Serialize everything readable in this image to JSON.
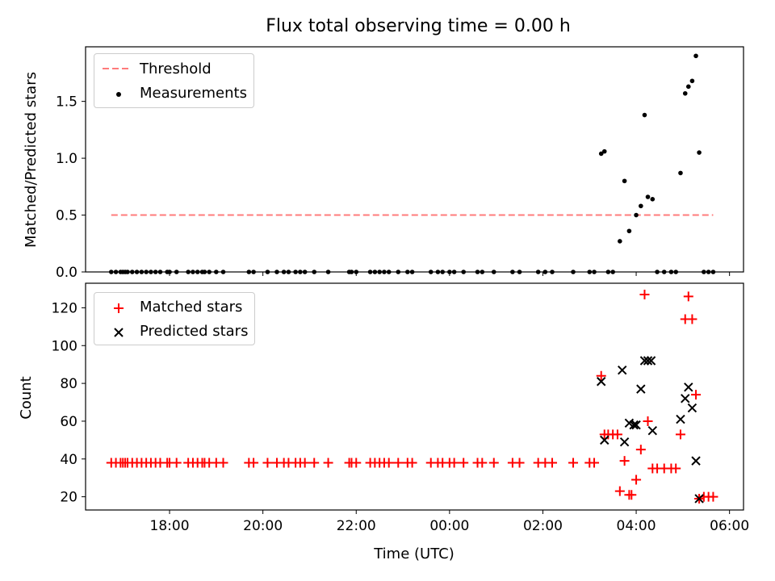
{
  "chart_data": {
    "type": "scatter",
    "title": "Flux total observing time = 0.00 h",
    "xlabel": "Time (UTC)",
    "x_tick_labels": [
      "18:00",
      "20:00",
      "22:00",
      "00:00",
      "02:00",
      "04:00",
      "06:00"
    ],
    "x_tick_hours": [
      18,
      20,
      22,
      24,
      26,
      28,
      30
    ],
    "xlim_hours": [
      16.2,
      30.3
    ],
    "top_panel": {
      "ylabel": "Matched/Predicted stars",
      "ylim": [
        0,
        1.98
      ],
      "y_ticks": [
        0.0,
        0.5,
        1.0,
        1.5
      ],
      "y_tick_labels": [
        "0.0",
        "0.5",
        "1.0",
        "1.5"
      ],
      "threshold": {
        "name": "Threshold",
        "value": 0.5,
        "x_start": 16.75,
        "x_end": 29.65,
        "color": "#ff7b7b"
      },
      "measurements": {
        "name": "Measurements",
        "color": "#000000",
        "points": [
          [
            16.75,
            0
          ],
          [
            16.85,
            0
          ],
          [
            16.95,
            0
          ],
          [
            17.0,
            0
          ],
          [
            17.05,
            0
          ],
          [
            17.1,
            0
          ],
          [
            17.2,
            0
          ],
          [
            17.3,
            0
          ],
          [
            17.4,
            0
          ],
          [
            17.5,
            0
          ],
          [
            17.6,
            0
          ],
          [
            17.7,
            0
          ],
          [
            17.8,
            0
          ],
          [
            17.95,
            0
          ],
          [
            18.0,
            0
          ],
          [
            18.15,
            0
          ],
          [
            18.4,
            0
          ],
          [
            18.5,
            0
          ],
          [
            18.6,
            0
          ],
          [
            18.7,
            0
          ],
          [
            18.75,
            0
          ],
          [
            18.85,
            0
          ],
          [
            19.0,
            0
          ],
          [
            19.15,
            0
          ],
          [
            19.7,
            0
          ],
          [
            19.8,
            0
          ],
          [
            20.1,
            0
          ],
          [
            20.3,
            0
          ],
          [
            20.45,
            0
          ],
          [
            20.55,
            0
          ],
          [
            20.7,
            0
          ],
          [
            20.8,
            0
          ],
          [
            20.9,
            0
          ],
          [
            21.1,
            0
          ],
          [
            21.4,
            0
          ],
          [
            21.85,
            0
          ],
          [
            21.9,
            0
          ],
          [
            22.0,
            0
          ],
          [
            22.3,
            0
          ],
          [
            22.4,
            0
          ],
          [
            22.5,
            0
          ],
          [
            22.6,
            0
          ],
          [
            22.7,
            0
          ],
          [
            22.9,
            0
          ],
          [
            23.1,
            0
          ],
          [
            23.2,
            0
          ],
          [
            23.6,
            0
          ],
          [
            23.75,
            0
          ],
          [
            23.85,
            0
          ],
          [
            24.0,
            0
          ],
          [
            24.1,
            0
          ],
          [
            24.3,
            0
          ],
          [
            24.6,
            0
          ],
          [
            24.7,
            0
          ],
          [
            24.95,
            0
          ],
          [
            25.35,
            0
          ],
          [
            25.5,
            0
          ],
          [
            25.9,
            0
          ],
          [
            26.05,
            0
          ],
          [
            26.2,
            0
          ],
          [
            26.65,
            0
          ],
          [
            27.0,
            0
          ],
          [
            27.1,
            0
          ],
          [
            27.25,
            1.04
          ],
          [
            27.32,
            1.06
          ],
          [
            27.4,
            0
          ],
          [
            27.5,
            0
          ],
          [
            27.65,
            0.27
          ],
          [
            27.75,
            0.8
          ],
          [
            27.85,
            0.36
          ],
          [
            28.0,
            0.5
          ],
          [
            28.1,
            0.58
          ],
          [
            28.18,
            1.38
          ],
          [
            28.25,
            0.66
          ],
          [
            28.35,
            0.64
          ],
          [
            28.45,
            0
          ],
          [
            28.6,
            0
          ],
          [
            28.75,
            0
          ],
          [
            28.85,
            0
          ],
          [
            28.95,
            0.87
          ],
          [
            29.05,
            1.57
          ],
          [
            29.12,
            1.63
          ],
          [
            29.2,
            1.68
          ],
          [
            29.28,
            1.9
          ],
          [
            29.35,
            1.05
          ],
          [
            29.45,
            0
          ],
          [
            29.55,
            0
          ],
          [
            29.65,
            0
          ]
        ]
      }
    },
    "bottom_panel": {
      "ylabel": "Count",
      "ylim": [
        13,
        133
      ],
      "y_ticks": [
        20,
        40,
        60,
        80,
        100,
        120
      ],
      "y_tick_labels": [
        "20",
        "40",
        "60",
        "80",
        "100",
        "120"
      ],
      "matched": {
        "name": "Matched stars",
        "color": "#ff0000",
        "points": [
          [
            16.75,
            38
          ],
          [
            16.85,
            38
          ],
          [
            16.95,
            38
          ],
          [
            17.0,
            38
          ],
          [
            17.05,
            38
          ],
          [
            17.1,
            38
          ],
          [
            17.2,
            38
          ],
          [
            17.3,
            38
          ],
          [
            17.4,
            38
          ],
          [
            17.5,
            38
          ],
          [
            17.6,
            38
          ],
          [
            17.7,
            38
          ],
          [
            17.8,
            38
          ],
          [
            17.95,
            38
          ],
          [
            18.0,
            38
          ],
          [
            18.15,
            38
          ],
          [
            18.4,
            38
          ],
          [
            18.5,
            38
          ],
          [
            18.6,
            38
          ],
          [
            18.7,
            38
          ],
          [
            18.75,
            38
          ],
          [
            18.85,
            38
          ],
          [
            19.0,
            38
          ],
          [
            19.15,
            38
          ],
          [
            19.7,
            38
          ],
          [
            19.8,
            38
          ],
          [
            20.1,
            38
          ],
          [
            20.3,
            38
          ],
          [
            20.45,
            38
          ],
          [
            20.55,
            38
          ],
          [
            20.7,
            38
          ],
          [
            20.8,
            38
          ],
          [
            20.9,
            38
          ],
          [
            21.1,
            38
          ],
          [
            21.4,
            38
          ],
          [
            21.85,
            38
          ],
          [
            21.9,
            38
          ],
          [
            22.0,
            38
          ],
          [
            22.3,
            38
          ],
          [
            22.4,
            38
          ],
          [
            22.5,
            38
          ],
          [
            22.6,
            38
          ],
          [
            22.7,
            38
          ],
          [
            22.9,
            38
          ],
          [
            23.1,
            38
          ],
          [
            23.2,
            38
          ],
          [
            23.6,
            38
          ],
          [
            23.75,
            38
          ],
          [
            23.85,
            38
          ],
          [
            24.0,
            38
          ],
          [
            24.1,
            38
          ],
          [
            24.3,
            38
          ],
          [
            24.6,
            38
          ],
          [
            24.7,
            38
          ],
          [
            24.95,
            38
          ],
          [
            25.35,
            38
          ],
          [
            25.5,
            38
          ],
          [
            25.9,
            38
          ],
          [
            26.05,
            38
          ],
          [
            26.2,
            38
          ],
          [
            26.65,
            38
          ],
          [
            27.0,
            38
          ],
          [
            27.1,
            38
          ],
          [
            27.25,
            84
          ],
          [
            27.32,
            53
          ],
          [
            27.4,
            53
          ],
          [
            27.5,
            53
          ],
          [
            27.6,
            53
          ],
          [
            27.65,
            23
          ],
          [
            27.75,
            39
          ],
          [
            27.85,
            21
          ],
          [
            27.9,
            21
          ],
          [
            28.0,
            29
          ],
          [
            28.1,
            45
          ],
          [
            28.18,
            127
          ],
          [
            28.25,
            60
          ],
          [
            28.35,
            35
          ],
          [
            28.45,
            35
          ],
          [
            28.6,
            35
          ],
          [
            28.75,
            35
          ],
          [
            28.85,
            35
          ],
          [
            28.95,
            53
          ],
          [
            29.05,
            114
          ],
          [
            29.12,
            126
          ],
          [
            29.2,
            114
          ],
          [
            29.28,
            74
          ],
          [
            29.35,
            19
          ],
          [
            29.45,
            20
          ],
          [
            29.55,
            20
          ],
          [
            29.65,
            20
          ]
        ]
      },
      "predicted": {
        "name": "Predicted stars",
        "color": "#000000",
        "points": [
          [
            27.25,
            81
          ],
          [
            27.32,
            50
          ],
          [
            27.7,
            87
          ],
          [
            27.75,
            49
          ],
          [
            27.85,
            59
          ],
          [
            27.95,
            58
          ],
          [
            28.0,
            58
          ],
          [
            28.1,
            77
          ],
          [
            28.18,
            92
          ],
          [
            28.25,
            92
          ],
          [
            28.32,
            92
          ],
          [
            28.35,
            55
          ],
          [
            28.95,
            61
          ],
          [
            29.05,
            72
          ],
          [
            29.12,
            78
          ],
          [
            29.2,
            67
          ],
          [
            29.28,
            39
          ],
          [
            29.35,
            19
          ]
        ]
      }
    }
  }
}
